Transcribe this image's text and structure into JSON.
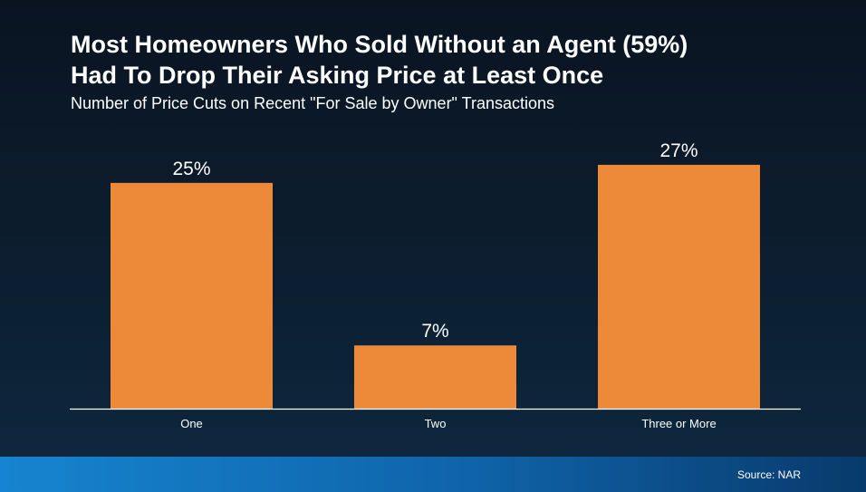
{
  "header": {
    "title_line1": "Most Homeowners Who Sold Without an Agent (59%)",
    "title_line2": "Had To Drop Their Asking Price at Least Once",
    "subtitle": "Number of Price Cuts on Recent \"For Sale by Owner\" Transactions"
  },
  "footer": {
    "source": "Source: NAR"
  },
  "colors": {
    "bar": "#ec8a3a",
    "axis": "#ffffff",
    "text": "#ffffff"
  },
  "chart_data": {
    "type": "bar",
    "categories": [
      "One",
      "Two",
      "Three or More"
    ],
    "values": [
      25,
      7,
      27
    ],
    "data_labels": [
      "25%",
      "7%",
      "27%"
    ],
    "ylim": [
      0,
      30
    ],
    "grid": false,
    "legend": "none"
  }
}
